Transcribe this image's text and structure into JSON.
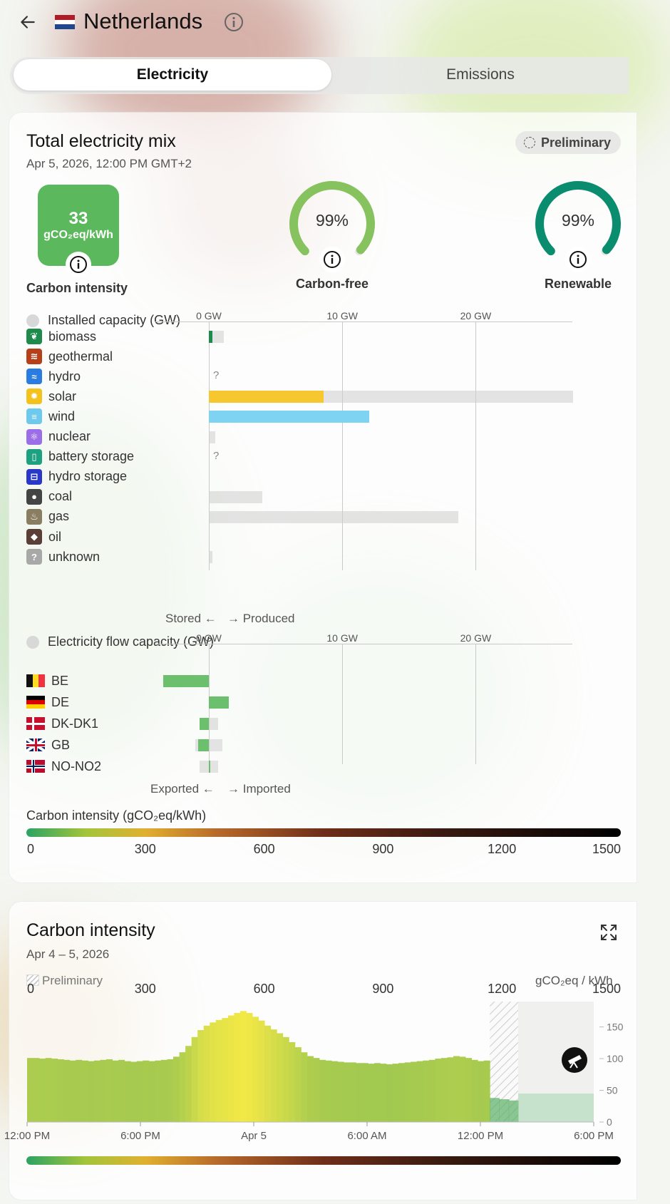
{
  "header": {
    "country": "Netherlands"
  },
  "tabs": [
    {
      "label": "Electricity",
      "active": true
    },
    {
      "label": "Emissions",
      "active": false
    }
  ],
  "mix_card": {
    "title": "Total electricity mix",
    "datetime": "Apr 5, 2026, 12:00 PM GMT+2",
    "badge": "Preliminary",
    "carbon_intensity": {
      "value": "33",
      "unit": "gCO₂eq/kWh",
      "label": "Carbon intensity",
      "color": "#5cb85c"
    },
    "carbon_free": {
      "value": "99%",
      "label": "Carbon-free",
      "color": "#86c25e",
      "fraction": 0.99
    },
    "renewable": {
      "value": "99%",
      "label": "Renewable",
      "color": "#0a8c6e",
      "fraction": 0.99
    },
    "capacity_section": {
      "title": "Installed capacity (GW)",
      "ticks": [
        "0 GW",
        "10 GW",
        "20 GW"
      ],
      "footer_left": "Stored ←",
      "footer_right": "→ Produced",
      "rows": [
        {
          "label": "biomass",
          "icon": "leaf-icon",
          "icon_color": "#1e8a4c",
          "produced": 0.25,
          "capacity": 1.1
        },
        {
          "label": "geothermal",
          "icon": "heat-waves-icon",
          "icon_color": "#b5401a",
          "produced": 0,
          "capacity": 0
        },
        {
          "label": "hydro",
          "icon": "water-waves-icon",
          "icon_color": "#2a7ce0",
          "produced": null,
          "capacity": null
        },
        {
          "label": "solar",
          "icon": "sun-icon",
          "icon_color": "#f4c21d",
          "produced": 8.6,
          "capacity": 27.3,
          "bar_color": "#f6c72e"
        },
        {
          "label": "wind",
          "icon": "wind-icon",
          "icon_color": "#6ec9ee",
          "produced": 12.0,
          "capacity": 12.0,
          "bar_color": "#7fd3f2"
        },
        {
          "label": "nuclear",
          "icon": "atom-icon",
          "icon_color": "#9b6ee8",
          "produced": 0,
          "capacity": 0.5
        },
        {
          "label": "battery storage",
          "icon": "battery-icon",
          "icon_color": "#1fa080",
          "produced": null,
          "capacity": null
        },
        {
          "label": "hydro storage",
          "icon": "dam-icon",
          "icon_color": "#2a38c8",
          "produced": 0,
          "capacity": 0
        },
        {
          "label": "coal",
          "icon": "coal-drop-icon",
          "icon_color": "#444444",
          "produced": 0,
          "capacity": 4.0
        },
        {
          "label": "gas",
          "icon": "flame-icon",
          "icon_color": "#8a7e62",
          "produced": 0,
          "capacity": 18.7
        },
        {
          "label": "oil",
          "icon": "oil-drop-icon",
          "icon_color": "#5a3e38",
          "produced": 0,
          "capacity": 0
        },
        {
          "label": "unknown",
          "icon": "question-icon",
          "icon_color": "#a8a8a8",
          "produced": 0,
          "capacity": 0.25
        }
      ]
    },
    "flow_section": {
      "title": "Electricity flow capacity (GW)",
      "ticks": [
        "0 GW",
        "10 GW",
        "20 GW"
      ],
      "footer_left": "Exported ←",
      "footer_right": "→ Imported",
      "rows": [
        {
          "label": "BE",
          "flag": "be-flag-icon",
          "flow": -3.4,
          "cap_min": -3.4,
          "cap_max": 0
        },
        {
          "label": "DE",
          "flag": "de-flag-icon",
          "flow": 1.5,
          "cap_min": 0,
          "cap_max": 1.5
        },
        {
          "label": "DK-DK1",
          "flag": "dk-flag-icon",
          "flow": -0.7,
          "cap_min": -0.7,
          "cap_max": 0.7
        },
        {
          "label": "GB",
          "flag": "gb-flag-icon",
          "flow": -0.8,
          "cap_min": -1.0,
          "cap_max": 1.0
        },
        {
          "label": "NO-NO2",
          "flag": "no-flag-icon",
          "flow": 0.1,
          "cap_min": -0.7,
          "cap_max": 0.7
        }
      ]
    },
    "scale": {
      "title": "Carbon intensity (gCO₂eq/kWh)",
      "labels": [
        "0",
        "300",
        "600",
        "900",
        "1200",
        "1500"
      ]
    }
  },
  "intensity_card": {
    "title": "Carbon intensity",
    "date_range": "Apr 4 – 5, 2026",
    "legend_preliminary": "Preliminary",
    "unit": "gCO₂eq / kWh",
    "scale_labels": [
      "0",
      "300",
      "600",
      "900",
      "1200",
      "1500"
    ]
  },
  "chart_data": {
    "type": "bar",
    "title": "Carbon intensity",
    "ylabel": "gCO₂eq / kWh",
    "ylim": [
      0,
      190
    ],
    "yticks": [
      0,
      50,
      100,
      150
    ],
    "xtick_labels": [
      "12:00 PM",
      "6:00 PM",
      "Apr 5",
      "6:00 AM",
      "12:00 PM",
      "6:00 PM"
    ],
    "values": [
      101,
      101,
      100,
      101,
      100,
      99,
      98,
      97,
      98,
      97,
      96,
      97,
      98,
      99,
      97,
      98,
      96,
      95,
      96,
      97,
      96,
      97,
      98,
      99,
      103,
      110,
      120,
      134,
      145,
      152,
      157,
      161,
      164,
      168,
      172,
      175,
      172,
      166,
      160,
      152,
      146,
      140,
      134,
      126,
      118,
      110,
      104,
      101,
      98,
      97,
      96,
      95,
      94,
      94,
      93,
      93,
      92,
      93,
      92,
      91,
      92,
      93,
      94,
      95,
      96,
      97,
      98,
      100,
      101,
      102,
      104,
      103,
      101,
      98,
      96,
      97
    ],
    "preliminary_values": [
      38,
      36,
      34
    ],
    "bar_colors_hint": "green-yellow gradient by intensity"
  }
}
